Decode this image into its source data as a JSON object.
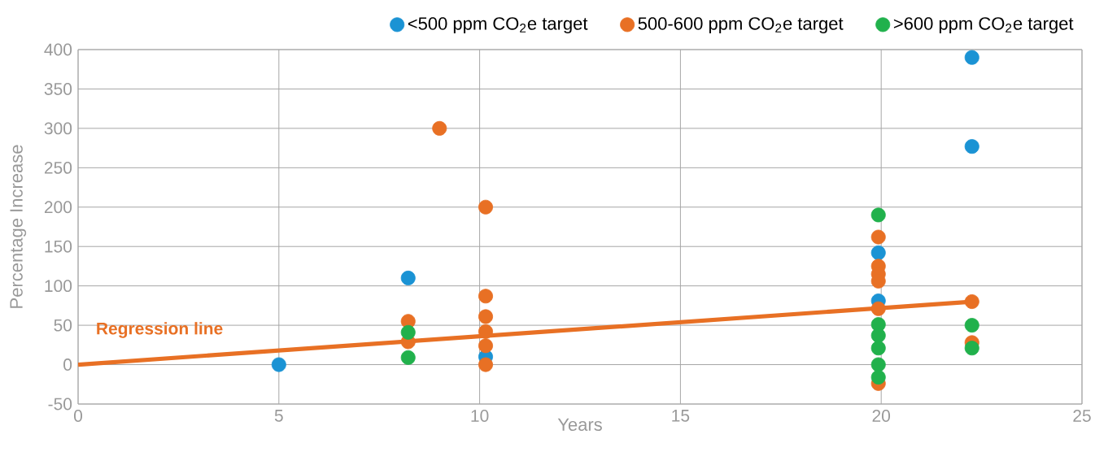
{
  "chart_data": {
    "type": "scatter",
    "xlabel": "Years",
    "ylabel": "Percentage Increase",
    "xlim": [
      0,
      25
    ],
    "ylim": [
      -50,
      400
    ],
    "xticks": [
      0,
      5,
      10,
      15,
      20,
      25
    ],
    "yticks": [
      -50,
      0,
      50,
      100,
      150,
      200,
      250,
      300,
      350,
      400
    ],
    "grid": true,
    "legend": "top right",
    "annotations": [
      "Regression line"
    ],
    "series": [
      {
        "name": "<500 ppm CO$_{2}$e target",
        "marker": "circle",
        "color": "#1b93d4",
        "x": [
          5.0,
          8.22,
          10.15,
          19.93,
          19.93,
          22.26,
          22.26
        ],
        "values": [
          0,
          110,
          10,
          142,
          81,
          390,
          277
        ]
      },
      {
        "name": "500-600 ppm CO$_{2}$e target",
        "marker": "circle",
        "color": "#e87024",
        "x": [
          9.0,
          8.22,
          8.22,
          10.15,
          10.15,
          10.15,
          10.15,
          10.15,
          10.15,
          19.93,
          19.93,
          19.93,
          19.93,
          19.93,
          19.93,
          22.26,
          22.26
        ],
        "values": [
          300,
          55,
          29,
          200,
          87,
          61,
          42,
          24,
          0,
          162,
          125,
          115,
          106,
          71,
          -24,
          80,
          28
        ]
      },
      {
        "name": ">600 ppm CO$_{2}$e target",
        "marker": "circle",
        "color": "#21b14c",
        "x": [
          8.22,
          8.22,
          19.93,
          19.93,
          19.93,
          19.93,
          19.93,
          19.93,
          22.26,
          22.26
        ],
        "values": [
          41,
          9,
          190,
          51,
          37,
          21,
          0,
          -16,
          50,
          21
        ]
      },
      {
        "type": "line",
        "marker": "none",
        "color": "#e87024",
        "x": [
          0,
          22.26
        ],
        "values": [
          0,
          80
        ]
      }
    ]
  }
}
